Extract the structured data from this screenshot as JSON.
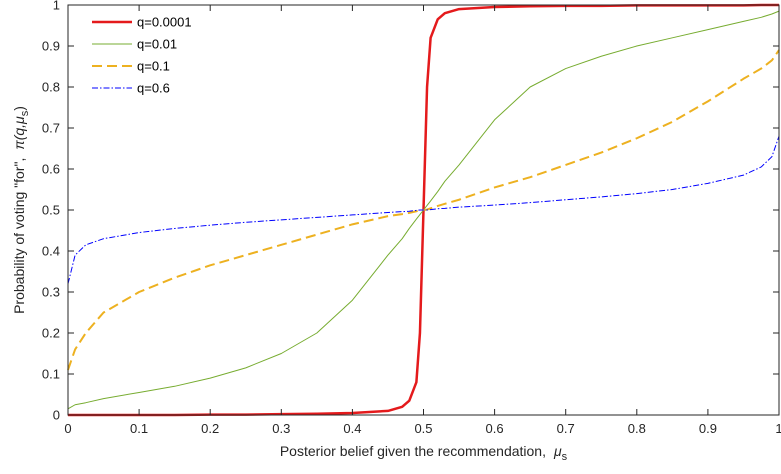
{
  "chart_data": {
    "type": "line",
    "title": "",
    "xlabel": "Posterior belief given the recommendation,",
    "xlabel_symbol": "μ",
    "xlabel_subscript": "s",
    "ylabel": "Probability of voting \"for\",",
    "ylabel_symbol": "π(q,μ",
    "ylabel_subscript": "s",
    "ylabel_close": ")",
    "xlim": [
      0,
      1
    ],
    "ylim": [
      0,
      1
    ],
    "xticks": [
      "0",
      "0.1",
      "0.2",
      "0.3",
      "0.4",
      "0.5",
      "0.6",
      "0.7",
      "0.8",
      "0.9",
      "1"
    ],
    "yticks": [
      "0",
      "0.1",
      "0.2",
      "0.3",
      "0.4",
      "0.5",
      "0.6",
      "0.7",
      "0.8",
      "0.9",
      "1"
    ],
    "grid": false,
    "legend_position": "top-left",
    "x": [
      0,
      0.01,
      0.025,
      0.05,
      0.1,
      0.15,
      0.2,
      0.25,
      0.3,
      0.35,
      0.4,
      0.45,
      0.47,
      0.48,
      0.49,
      0.495,
      0.5,
      0.505,
      0.51,
      0.52,
      0.53,
      0.55,
      0.6,
      0.65,
      0.7,
      0.75,
      0.8,
      0.85,
      0.9,
      0.95,
      0.975,
      0.99,
      1
    ],
    "series": [
      {
        "name": "q=0.0001",
        "color": "#e41a1c",
        "style": "solid",
        "width": 2.5,
        "values": [
          0.0,
          0.0,
          0.0,
          0.0,
          0.0,
          0.0,
          0.001,
          0.001,
          0.002,
          0.003,
          0.005,
          0.01,
          0.02,
          0.035,
          0.08,
          0.2,
          0.5,
          0.8,
          0.92,
          0.965,
          0.98,
          0.99,
          0.995,
          0.997,
          0.998,
          0.998,
          0.999,
          0.999,
          0.999,
          0.999,
          1.0,
          1.0,
          1.0
        ]
      },
      {
        "name": "q=0.01",
        "color": "#77ac30",
        "style": "solid",
        "width": 1,
        "values": [
          0.015,
          0.025,
          0.03,
          0.04,
          0.055,
          0.07,
          0.09,
          0.115,
          0.15,
          0.2,
          0.28,
          0.39,
          0.43,
          0.455,
          0.478,
          0.489,
          0.5,
          0.511,
          0.522,
          0.545,
          0.57,
          0.61,
          0.72,
          0.8,
          0.845,
          0.875,
          0.9,
          0.92,
          0.94,
          0.96,
          0.97,
          0.978,
          0.985
        ]
      },
      {
        "name": "q=0.1",
        "color": "#edb120",
        "style": "dashed",
        "width": 2,
        "values": [
          0.11,
          0.16,
          0.2,
          0.25,
          0.3,
          0.335,
          0.365,
          0.39,
          0.415,
          0.44,
          0.465,
          0.485,
          0.49,
          0.493,
          0.497,
          0.499,
          0.5,
          0.501,
          0.504,
          0.51,
          0.515,
          0.525,
          0.555,
          0.58,
          0.61,
          0.64,
          0.675,
          0.715,
          0.765,
          0.82,
          0.845,
          0.865,
          0.89
        ]
      },
      {
        "name": "q=0.6",
        "color": "#0000ff",
        "style": "dashdot",
        "width": 1,
        "values": [
          0.32,
          0.39,
          0.415,
          0.43,
          0.445,
          0.455,
          0.463,
          0.47,
          0.476,
          0.482,
          0.488,
          0.494,
          0.496,
          0.497,
          0.499,
          0.5,
          0.5,
          0.5,
          0.501,
          0.503,
          0.504,
          0.507,
          0.512,
          0.518,
          0.525,
          0.532,
          0.54,
          0.55,
          0.565,
          0.585,
          0.605,
          0.63,
          0.68
        ]
      }
    ]
  }
}
